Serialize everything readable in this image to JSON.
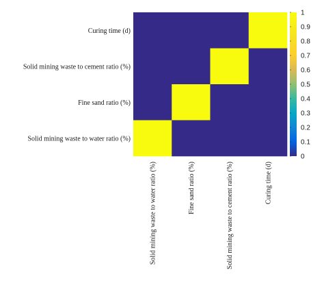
{
  "chart_data": {
    "type": "heatmap",
    "x_categories": [
      "Solid mining waste to water ratio (%)",
      "Fine sand ratio (%)",
      "Solid mining waste to cement ratio (%)",
      "Curing time (d)"
    ],
    "y_categories_top_to_bottom": [
      "Curing time (d)",
      "Solid mining waste to cement ratio (%)",
      "Fine sand ratio (%)",
      "Solid mining waste to water ratio (%)"
    ],
    "values": [
      [
        0,
        0,
        0,
        1
      ],
      [
        0,
        0,
        1,
        0
      ],
      [
        0,
        1,
        0,
        0
      ],
      [
        1,
        0,
        0,
        0
      ]
    ],
    "colorbar": {
      "range": [
        0,
        1
      ],
      "ticks": [
        "0",
        "0.1",
        "0.2",
        "0.3",
        "0.4",
        "0.5",
        "0.6",
        "0.7",
        "0.8",
        "0.9",
        "1"
      ],
      "colormap": "parula"
    },
    "colors": {
      "low": "#352a87",
      "high": "#f9fb0e"
    }
  }
}
